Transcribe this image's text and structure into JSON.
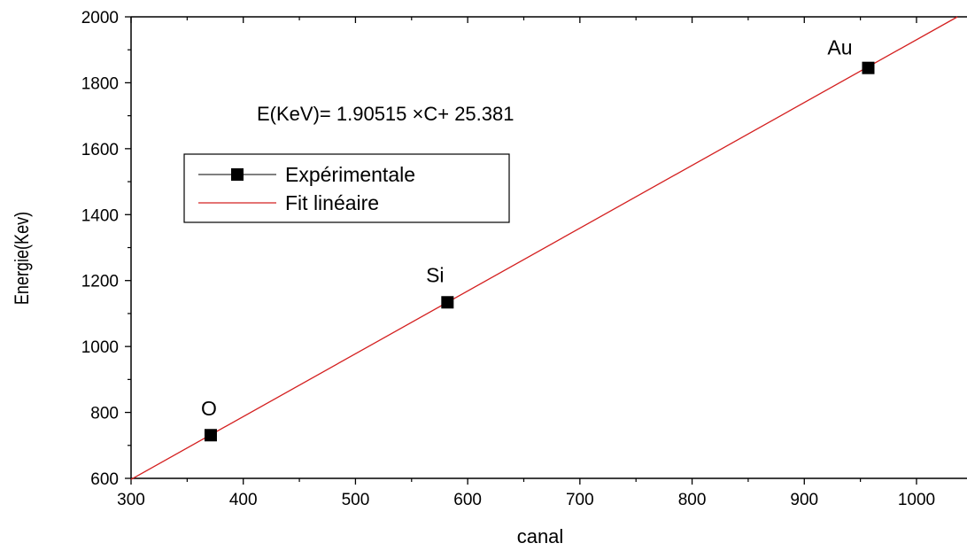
{
  "chart_data": {
    "type": "scatter",
    "title": "",
    "xlabel": "canal",
    "ylabel": "Energie(Kev)",
    "xlim": [
      300,
      1045
    ],
    "ylim": [
      600,
      2000
    ],
    "x_ticks": [
      300,
      400,
      500,
      600,
      700,
      800,
      900,
      1000
    ],
    "y_ticks": [
      600,
      800,
      1000,
      1200,
      1400,
      1600,
      1800,
      2000
    ],
    "grid": false,
    "legend_position": "left",
    "series": [
      {
        "name": "Expérimentale",
        "marker": "square",
        "color": "#000000",
        "points": [
          {
            "label": "O",
            "x": 371,
            "y": 731
          },
          {
            "label": "Si",
            "x": 582,
            "y": 1134
          },
          {
            "label": "Au",
            "x": 957,
            "y": 1845
          }
        ]
      },
      {
        "name": "Fit linéaire",
        "color": "#d42020",
        "slope": 1.90515,
        "intercept": 25.381
      }
    ],
    "annotation": "E(KeV)= 1.90515 ×C+ 25.381"
  }
}
